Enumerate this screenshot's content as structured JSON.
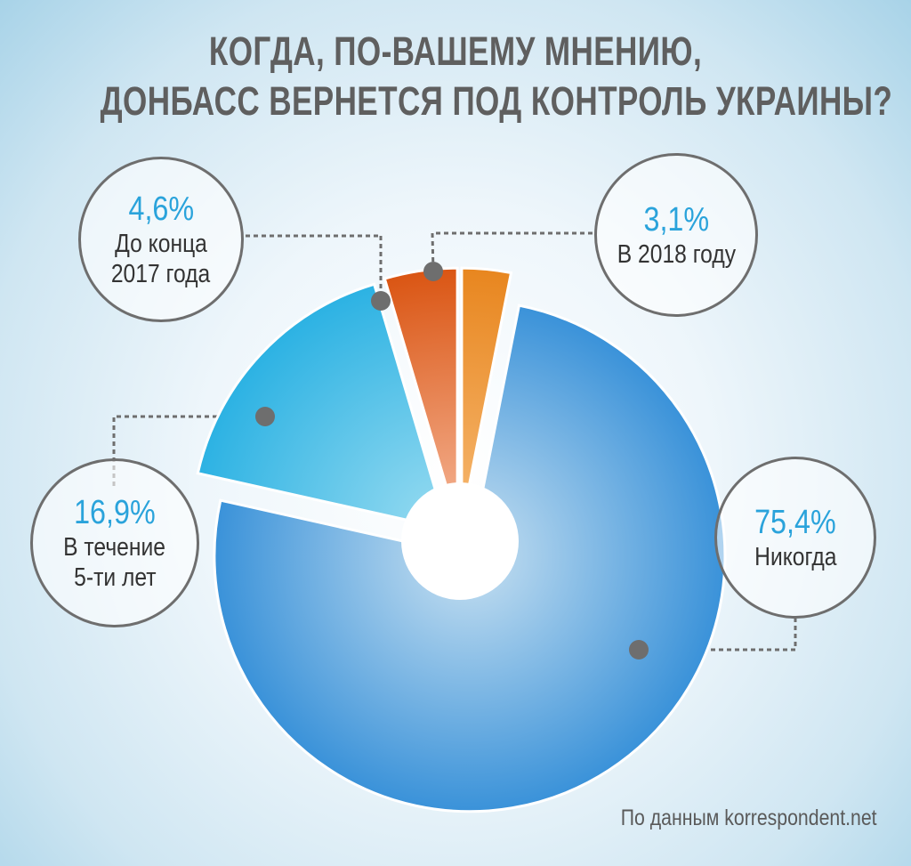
{
  "title": {
    "line1": "КОГДА, ПО-ВАШЕМУ  МНЕНИЮ,",
    "line2": "ДОНБАСС ВЕРНЕТСЯ ПОД КОНТРОЛЬ УКРАИНЫ?"
  },
  "source": "По данным korrespondent.net",
  "chart_data": {
    "type": "pie",
    "title": "КОГДА, ПО-ВАШЕМУ  МНЕНИЮ, ДОНБАСС ВЕРНЕТСЯ ПОД КОНТРОЛЬ УКРАИНЫ?",
    "categories": [
      "В 2018 году",
      "Никогда",
      "В течение 5-ти лет",
      "До конца 2017 года"
    ],
    "values": [
      3.1,
      75.4,
      16.9,
      4.6
    ],
    "unit": "%",
    "slices": [
      {
        "key": "in_2018",
        "label": "В 2018 году",
        "label_lines": [
          "В 2018 году"
        ],
        "value": 3.1,
        "value_text": "3,1%",
        "color_light": "#f6b871",
        "color_dark": "#e8861f"
      },
      {
        "key": "never",
        "label": "Никогда",
        "label_lines": [
          "Никогда"
        ],
        "value": 75.4,
        "value_text": "75,4%",
        "color_light": "#c9e1f1",
        "color_dark": "#3a92d9"
      },
      {
        "key": "five_years",
        "label": "В течение 5-ти лет",
        "label_lines": [
          "В течение",
          "5-ти лет"
        ],
        "value": 16.9,
        "value_text": "16,9%",
        "color_light": "#9adcf1",
        "color_dark": "#2cb2e3"
      },
      {
        "key": "end_2017",
        "label": "До конца 2017 года",
        "label_lines": [
          "До конца",
          "2017 года"
        ],
        "value": 4.6,
        "value_text": "4,6%",
        "color_light": "#f5b596",
        "color_dark": "#da5513"
      }
    ]
  }
}
